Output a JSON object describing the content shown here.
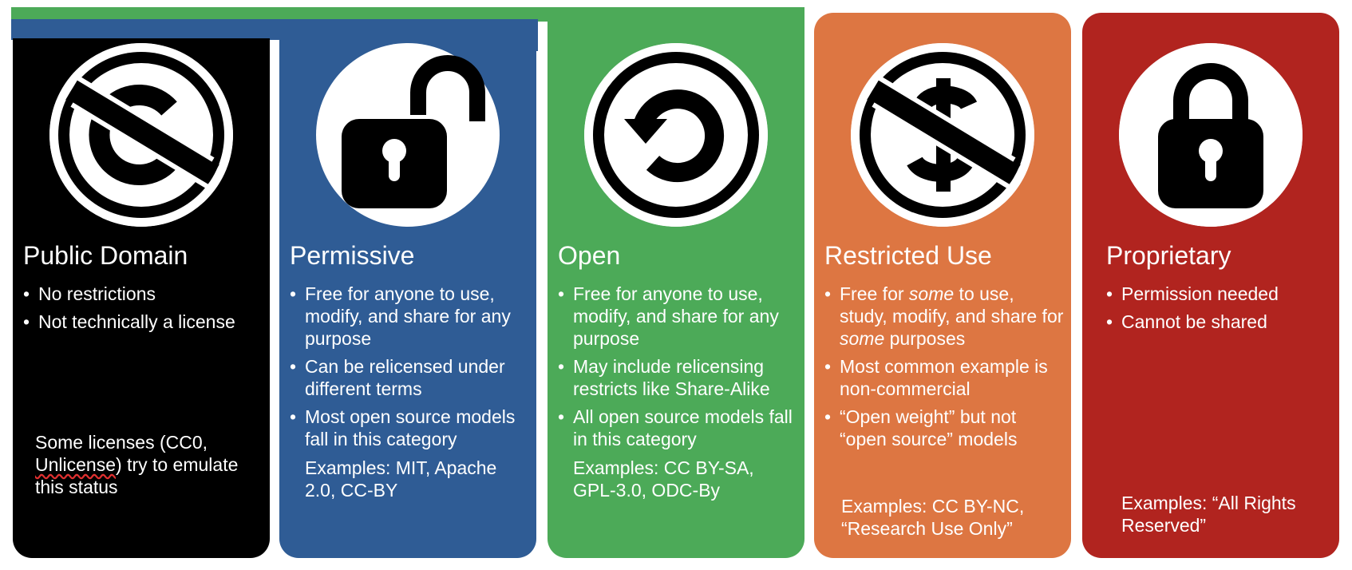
{
  "colors": {
    "public_domain": "#000000",
    "permissive": "#2f5c95",
    "open": "#4caa58",
    "restricted": "#dd7642",
    "proprietary": "#b1241f"
  },
  "categories": [
    {
      "title": "Public Domain",
      "icon": "no-copyright-icon",
      "bullets": [
        "No restrictions",
        "Not technically a license"
      ],
      "examples_parts": [
        "Some licenses (CC0, ",
        "Unlicense",
        ") try to emulate this status"
      ]
    },
    {
      "title": "Permissive",
      "icon": "open-padlock-icon",
      "bullets": [
        "Free for anyone to use, modify, and share for any purpose",
        "Can be relicensed under different terms",
        "Most open source models fall in this category"
      ],
      "examples": "Examples: MIT, Apache 2.0, CC-BY"
    },
    {
      "title": "Open",
      "icon": "share-alike-icon",
      "bullets": [
        "Free for anyone to use, modify, and share for any purpose",
        "May include relicensing restricts like Share-Alike",
        "All open source models fall in this category"
      ],
      "examples": "Examples: CC BY-SA, GPL-3.0, ODC-By"
    },
    {
      "title": "Restricted Use",
      "icon": "non-commercial-icon",
      "bullets_rich": [
        [
          "Free for ",
          "some",
          " to use, study, modify, and share for ",
          "some",
          " purposes"
        ],
        [
          "Most common example is non-commercial"
        ],
        [
          "“Open weight” but not “open source” models"
        ]
      ],
      "examples": "Examples: CC BY-NC, “Research Use Only”"
    },
    {
      "title": "Proprietary",
      "icon": "closed-padlock-icon",
      "bullets": [
        "Permission needed",
        "Cannot be shared"
      ],
      "examples": "Examples: “All Rights Reserved”"
    }
  ]
}
